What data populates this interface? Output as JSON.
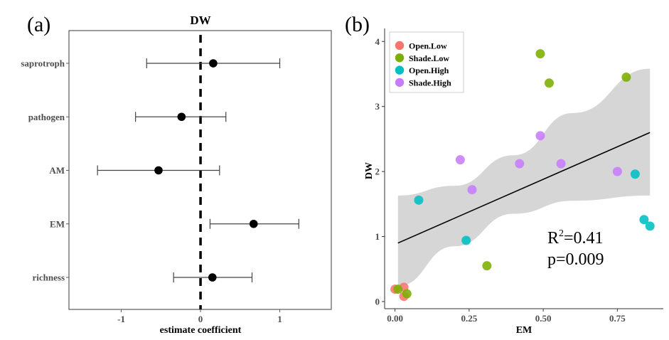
{
  "chart_data": [
    {
      "type": "forest",
      "panel_label": "(a)",
      "title": "DW",
      "xlabel": "estimate coefficient",
      "ylabel": "",
      "xlim": [
        -1.66,
        1.65
      ],
      "xticks": [
        -1,
        0,
        1
      ],
      "xtick_labels": [
        "-1",
        "0",
        "1"
      ],
      "reference_line": 0,
      "categories": [
        "saprotroph",
        "pathogen",
        "AM",
        "EM",
        "richness"
      ],
      "estimates": [
        0.16,
        -0.24,
        -0.53,
        0.67,
        0.15
      ],
      "ci_low": [
        -0.68,
        -0.82,
        -1.3,
        0.12,
        -0.34
      ],
      "ci_high": [
        1.0,
        0.32,
        0.24,
        1.24,
        0.65
      ],
      "grid": false
    },
    {
      "type": "scatter",
      "panel_label": "(b)",
      "title": "",
      "xlabel": "EM",
      "ylabel": "DW",
      "xlim": [
        -0.035,
        0.905
      ],
      "ylim": [
        -0.11,
        4.2
      ],
      "xticks": [
        0,
        0.25,
        0.5,
        0.75
      ],
      "xtick_labels": [
        "0.00",
        "0.25",
        "0.50",
        "0.75"
      ],
      "yticks": [
        0,
        1,
        2,
        3,
        4
      ],
      "ytick_labels": [
        "0",
        "1",
        "2",
        "3",
        "4"
      ],
      "legend_position": "top-left",
      "series": [
        {
          "name": "Open.Low",
          "color": "#F8766D",
          "points": [
            [
              0.0,
              0.19
            ],
            [
              0.03,
              0.22
            ],
            [
              0.03,
              0.08
            ]
          ]
        },
        {
          "name": "Shade.Low",
          "color": "#7CAE00",
          "points": [
            [
              0.49,
              3.81
            ],
            [
              0.52,
              3.36
            ],
            [
              0.78,
              3.45
            ],
            [
              0.31,
              0.55
            ],
            [
              0.01,
              0.19
            ],
            [
              0.04,
              0.12
            ]
          ]
        },
        {
          "name": "Open.High",
          "color": "#00BFC4",
          "points": [
            [
              0.08,
              1.56
            ],
            [
              0.24,
              0.94
            ],
            [
              0.81,
              1.96
            ],
            [
              0.84,
              1.26
            ],
            [
              0.86,
              1.16
            ]
          ]
        },
        {
          "name": "Shade.High",
          "color": "#C77CFF",
          "points": [
            [
              0.49,
              2.55
            ],
            [
              0.22,
              2.18
            ],
            [
              0.42,
              2.12
            ],
            [
              0.56,
              2.12
            ],
            [
              0.75,
              2.0
            ],
            [
              0.26,
              1.72
            ]
          ]
        }
      ],
      "regression": {
        "x": [
          0.01,
          0.86
        ],
        "y": [
          0.9,
          2.6
        ],
        "ci_upper": [
          [
            0.01,
            1.63
          ],
          [
            0.2,
            1.78
          ],
          [
            0.4,
            2.25
          ],
          [
            0.6,
            2.9
          ],
          [
            0.86,
            3.58
          ]
        ],
        "ci_lower": [
          [
            0.01,
            0.24
          ],
          [
            0.2,
            0.85
          ],
          [
            0.4,
            1.35
          ],
          [
            0.6,
            1.55
          ],
          [
            0.86,
            1.63
          ]
        ]
      },
      "annotations": {
        "r2_prefix": "R",
        "r2_sup": "2",
        "r2_value": "=0.41",
        "p_text": "p=0.009"
      },
      "grid": false
    }
  ]
}
